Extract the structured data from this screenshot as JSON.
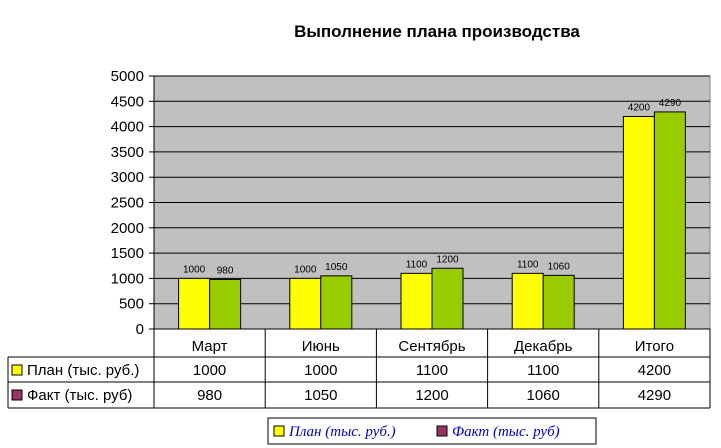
{
  "chart_data": {
    "type": "bar",
    "title": "Выполнение плана производства",
    "categories": [
      "Март",
      "Июнь",
      "Сентябрь",
      "Декабрь",
      "Итого"
    ],
    "series": [
      {
        "name": "План (тыс. руб.)",
        "values": [
          1000,
          1000,
          1100,
          1100,
          4200
        ],
        "color": "#ffff00"
      },
      {
        "name": "Факт (тыс. руб)",
        "values": [
          980,
          1050,
          1200,
          1060,
          4290
        ],
        "color": "#99cc00",
        "legend_color": "#993366"
      }
    ],
    "ylim": [
      0,
      5000
    ],
    "yticks": [
      0,
      500,
      1000,
      1500,
      2000,
      2500,
      3000,
      3500,
      4000,
      4500,
      5000
    ],
    "plot_background": "#c0c0c0",
    "grid": true,
    "data_table": true,
    "legend": "bottom-right"
  }
}
